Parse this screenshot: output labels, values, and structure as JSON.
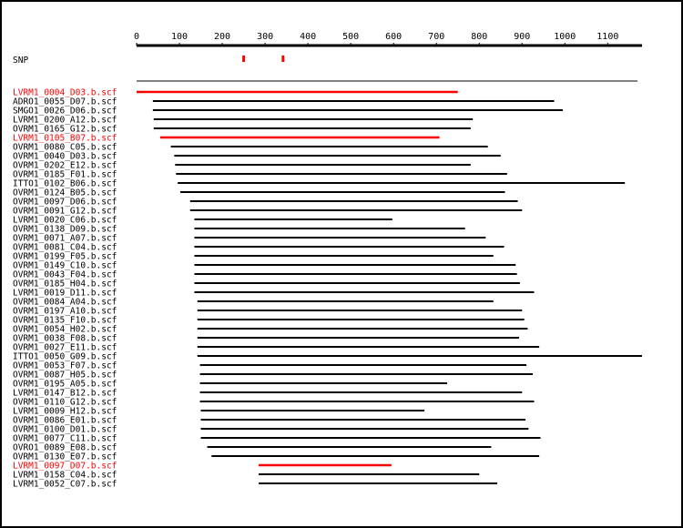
{
  "chart_data": {
    "type": "alignment",
    "axis": {
      "min": 0,
      "max": 1180,
      "ticks": [
        0,
        100,
        200,
        300,
        400,
        500,
        600,
        700,
        800,
        900,
        1000,
        1100
      ]
    },
    "snp_label": "SNP",
    "snp_positions": [
      250,
      342
    ],
    "colors": {
      "normal": "#000000",
      "highlight": "#ff0000"
    },
    "reads": [
      {
        "name": "LVRM1_0004_D03.b.scf",
        "start": 0,
        "end": 750,
        "highlight": true
      },
      {
        "name": "ADRO1_0055_D07.b.scf",
        "start": 38,
        "end": 975,
        "highlight": false
      },
      {
        "name": "SMGO1_0026_D06.b.scf",
        "start": 38,
        "end": 995,
        "highlight": false
      },
      {
        "name": "LVRM1_0200_A12.b.scf",
        "start": 40,
        "end": 785,
        "highlight": false
      },
      {
        "name": "OVRM1_0165_G12.b.scf",
        "start": 40,
        "end": 780,
        "highlight": false
      },
      {
        "name": "LVRM1_0105_B07.b.scf",
        "start": 55,
        "end": 707,
        "highlight": true
      },
      {
        "name": "OVRM1_0080_C05.b.scf",
        "start": 80,
        "end": 820,
        "highlight": false
      },
      {
        "name": "OVRM1_0040_D03.b.scf",
        "start": 88,
        "end": 850,
        "highlight": false
      },
      {
        "name": "OVRM1_0202_E12.b.scf",
        "start": 90,
        "end": 780,
        "highlight": false
      },
      {
        "name": "OVRM1_0185_F01.b.scf",
        "start": 92,
        "end": 865,
        "highlight": false
      },
      {
        "name": "ITTO1_0102_B06.b.scf",
        "start": 96,
        "end": 1140,
        "highlight": false
      },
      {
        "name": "OVRM1_0124_B05.b.scf",
        "start": 102,
        "end": 860,
        "highlight": false
      },
      {
        "name": "OVRM1_0097_D06.b.scf",
        "start": 125,
        "end": 890,
        "highlight": false
      },
      {
        "name": "OVRM1_0091_G12.b.scf",
        "start": 125,
        "end": 900,
        "highlight": false
      },
      {
        "name": "LVRM1_0020_C06.b.scf",
        "start": 135,
        "end": 597,
        "highlight": false
      },
      {
        "name": "OVRM1_0138_D09.b.scf",
        "start": 135,
        "end": 767,
        "highlight": false
      },
      {
        "name": "OVRM1_0071_A07.b.scf",
        "start": 135,
        "end": 815,
        "highlight": false
      },
      {
        "name": "OVRM1_0081_C04.b.scf",
        "start": 135,
        "end": 858,
        "highlight": false
      },
      {
        "name": "OVRM1_0199_F05.b.scf",
        "start": 135,
        "end": 833,
        "highlight": false
      },
      {
        "name": "OVRM1_0149_C10.b.scf",
        "start": 135,
        "end": 885,
        "highlight": false
      },
      {
        "name": "OVRM1_0043_F04.b.scf",
        "start": 135,
        "end": 888,
        "highlight": false
      },
      {
        "name": "OVRM1_0185_H04.b.scf",
        "start": 135,
        "end": 895,
        "highlight": false
      },
      {
        "name": "LVRM1_0019_D11.b.scf",
        "start": 135,
        "end": 928,
        "highlight": false
      },
      {
        "name": "OVRM1_0084_A04.b.scf",
        "start": 142,
        "end": 833,
        "highlight": false
      },
      {
        "name": "OVRM1_0197_A10.b.scf",
        "start": 142,
        "end": 900,
        "highlight": false
      },
      {
        "name": "OVRM1_0135_F10.b.scf",
        "start": 142,
        "end": 905,
        "highlight": false
      },
      {
        "name": "OVRM1_0054_H02.b.scf",
        "start": 142,
        "end": 913,
        "highlight": false
      },
      {
        "name": "OVRM1_0038_F08.b.scf",
        "start": 142,
        "end": 893,
        "highlight": false
      },
      {
        "name": "OVRM1_0027_E11.b.scf",
        "start": 142,
        "end": 940,
        "highlight": false
      },
      {
        "name": "ITTO1_0050_G09.b.scf",
        "start": 142,
        "end": 1180,
        "highlight": false
      },
      {
        "name": "OVRM1_0053_F07.b.scf",
        "start": 148,
        "end": 910,
        "highlight": false
      },
      {
        "name": "OVRM1_0087_H05.b.scf",
        "start": 148,
        "end": 925,
        "highlight": false
      },
      {
        "name": "OVRM1_0195_A05.b.scf",
        "start": 148,
        "end": 725,
        "highlight": false
      },
      {
        "name": "LVRM1_0147_B12.b.scf",
        "start": 148,
        "end": 900,
        "highlight": false
      },
      {
        "name": "OVRM1_0110_G12.b.scf",
        "start": 148,
        "end": 928,
        "highlight": false
      },
      {
        "name": "LVRM1_0009_H12.b.scf",
        "start": 150,
        "end": 672,
        "highlight": false
      },
      {
        "name": "OVRM1_0086_E01.b.scf",
        "start": 150,
        "end": 908,
        "highlight": false
      },
      {
        "name": "OVRM1_0100_D01.b.scf",
        "start": 150,
        "end": 915,
        "highlight": false
      },
      {
        "name": "OVRM1_0077_C11.b.scf",
        "start": 150,
        "end": 943,
        "highlight": false
      },
      {
        "name": "OVRO1_0089_E08.b.scf",
        "start": 165,
        "end": 828,
        "highlight": false
      },
      {
        "name": "OVRM1_0130_E07.b.scf",
        "start": 175,
        "end": 940,
        "highlight": false
      },
      {
        "name": "LVRM1_0097_D07.b.scf",
        "start": 285,
        "end": 595,
        "highlight": true
      },
      {
        "name": "LVRM1_0158_C04.b.scf",
        "start": 285,
        "end": 800,
        "highlight": false
      },
      {
        "name": "LVRM1_0052_C07.b.scf",
        "start": 285,
        "end": 842,
        "highlight": false
      }
    ]
  }
}
